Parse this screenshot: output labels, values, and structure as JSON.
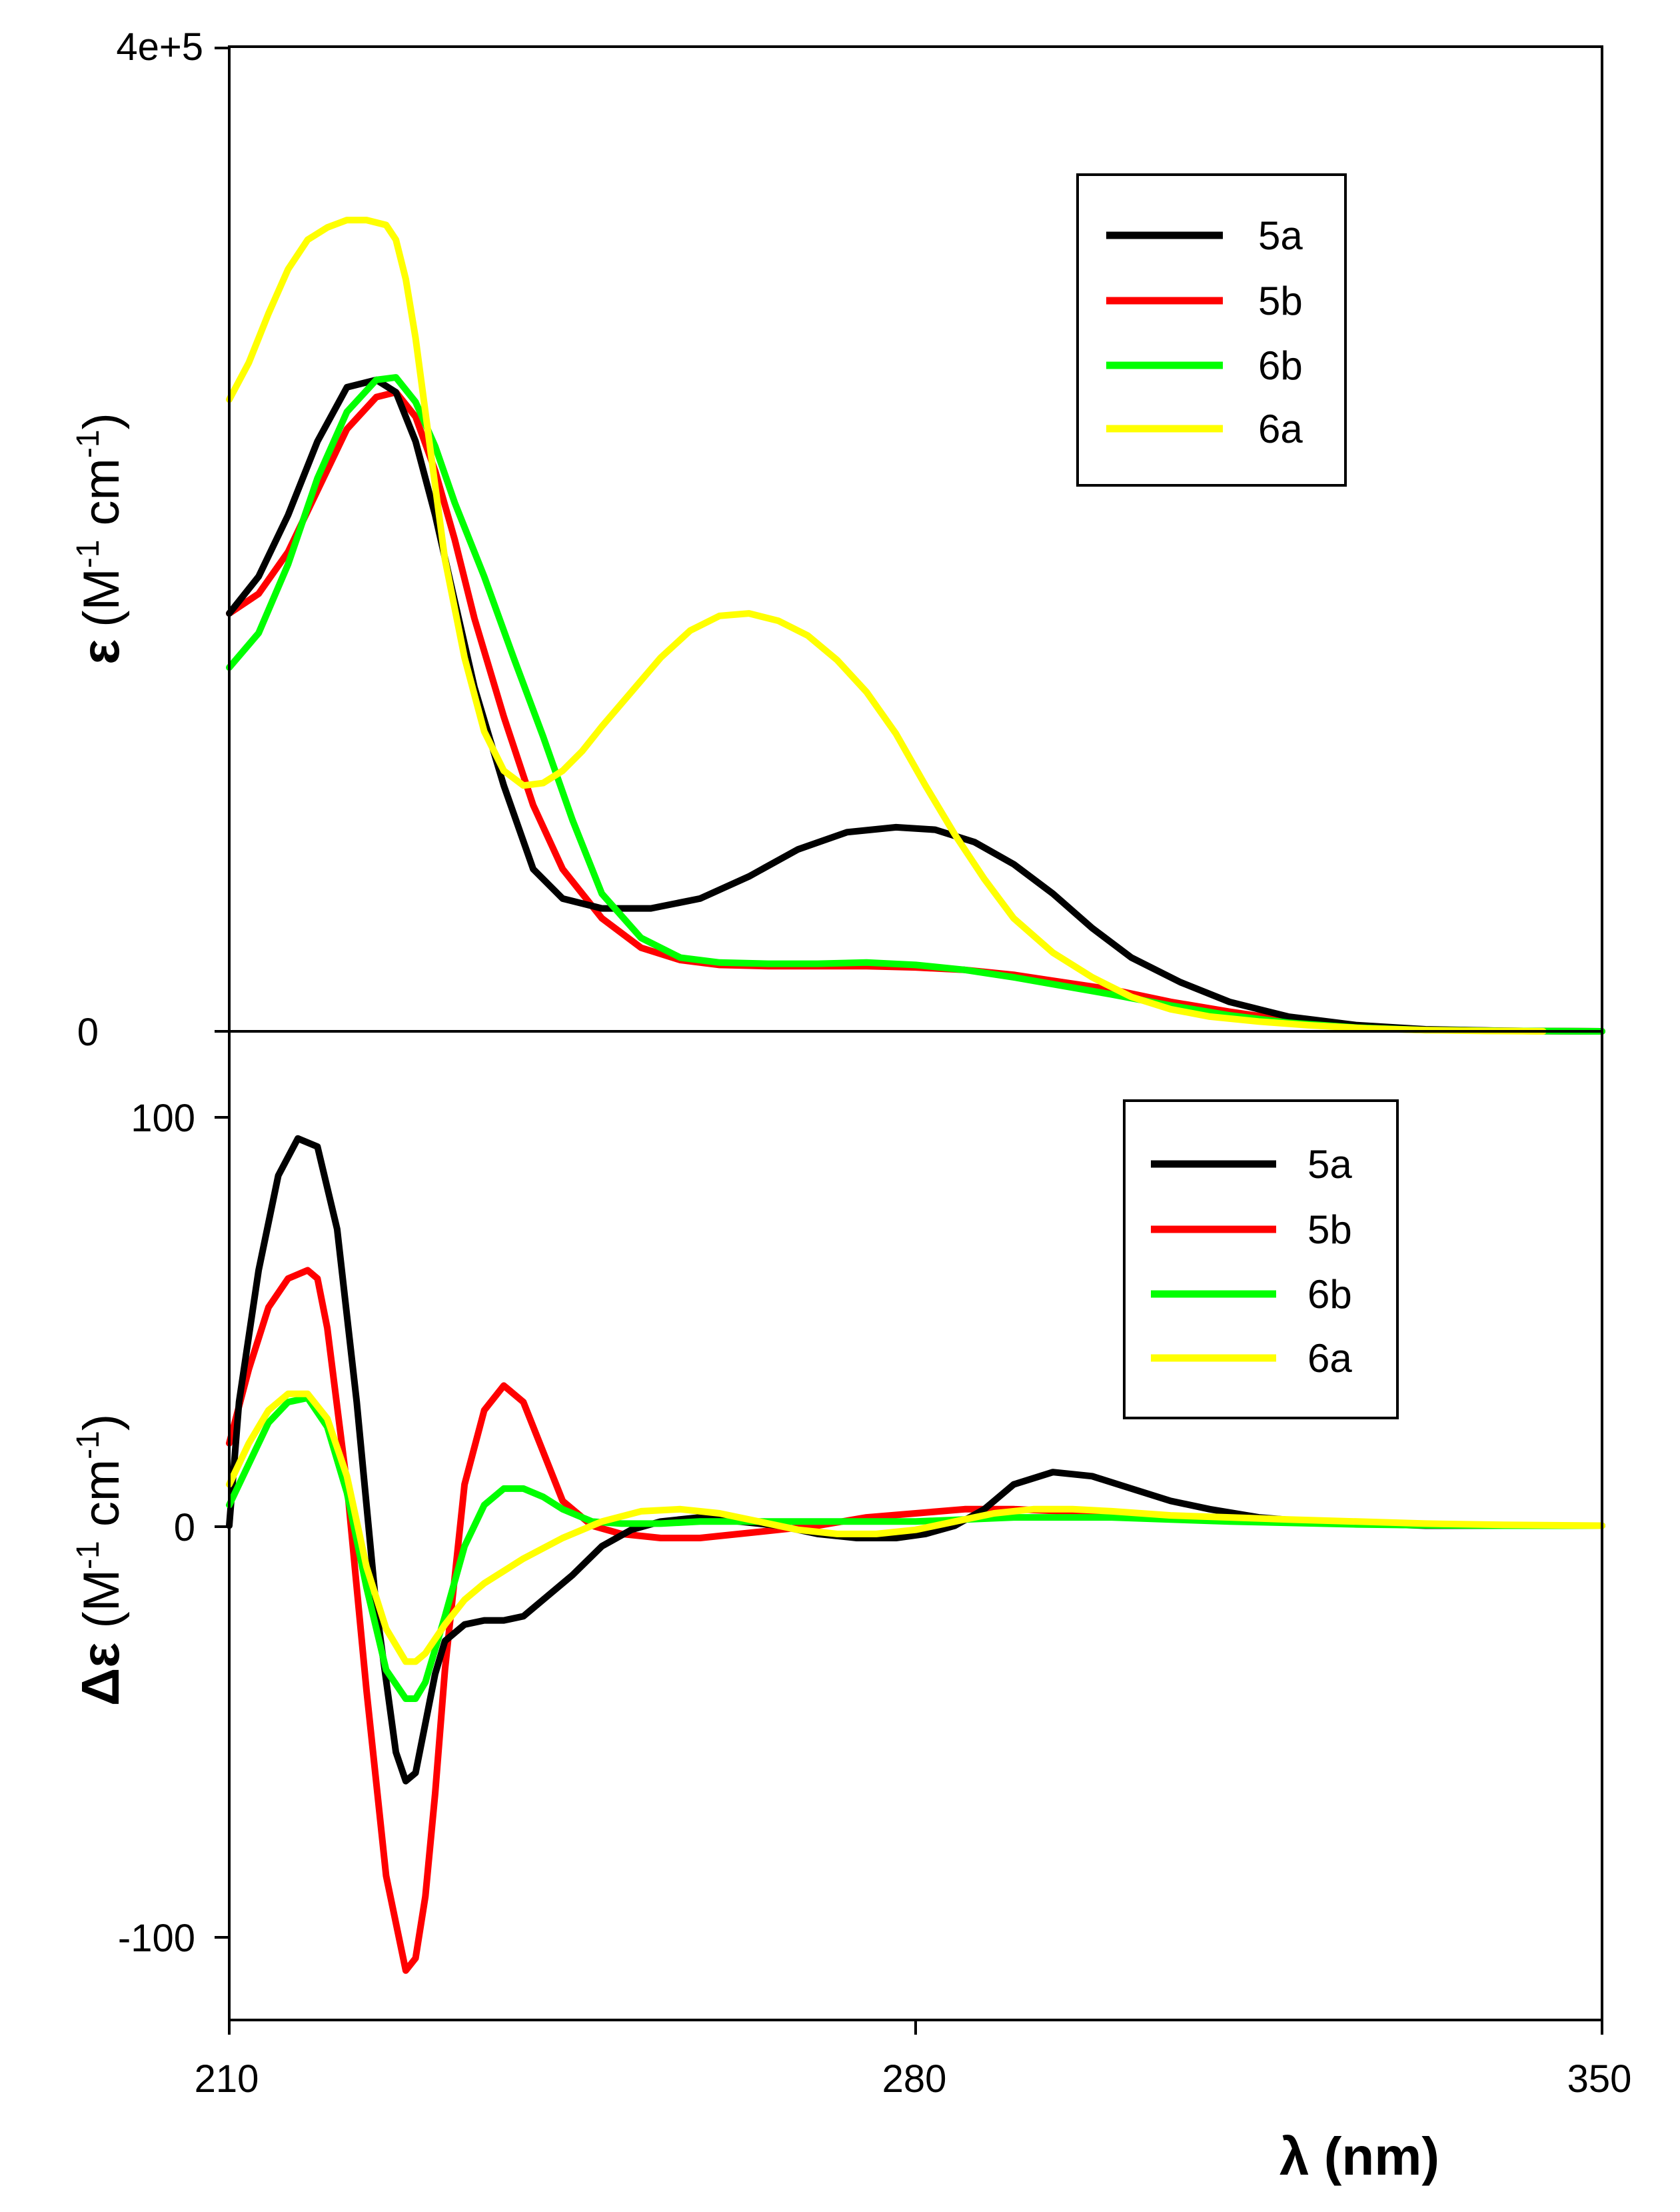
{
  "chart_data": [
    {
      "type": "line",
      "panel": "absorption",
      "ylabel_symbol": "ε",
      "ylabel_units_M": "(M",
      "ylabel_units_sup1": "-1",
      "ylabel_units_cm": " cm",
      "ylabel_units_sup2": "-1",
      "ylabel_units_close": ")",
      "xlim": [
        210,
        350
      ],
      "ylim": [
        0,
        400000
      ],
      "ytick_labels": [
        {
          "value": 400000,
          "label": "4e+5"
        },
        {
          "value": 0,
          "label": "0"
        }
      ],
      "legend": [
        "5a",
        "5b",
        "6b",
        "6a"
      ],
      "series": [
        {
          "name": "5a",
          "color": "#000000",
          "x": [
            210,
            213,
            216,
            219,
            222,
            225,
            227,
            229,
            231,
            233,
            235,
            238,
            241,
            244,
            248,
            253,
            258,
            263,
            268,
            273,
            278,
            282,
            286,
            290,
            294,
            298,
            302,
            307,
            312,
            318,
            325,
            332,
            340,
            350
          ],
          "y": [
            170000,
            185000,
            210000,
            240000,
            262000,
            265000,
            260000,
            240000,
            210000,
            175000,
            140000,
            100000,
            66000,
            54000,
            50000,
            50000,
            54000,
            63000,
            74000,
            81000,
            83000,
            82000,
            77000,
            68000,
            56000,
            42000,
            30000,
            20000,
            12000,
            6000,
            2500,
            800,
            200,
            0
          ]
        },
        {
          "name": "5b",
          "color": "#ff0000",
          "x": [
            210,
            213,
            216,
            219,
            222,
            225,
            227,
            229,
            231,
            233,
            235,
            238,
            241,
            244,
            248,
            252,
            256,
            260,
            265,
            270,
            275,
            280,
            285,
            290,
            295,
            300,
            306,
            312,
            318,
            325,
            332,
            340,
            350
          ],
          "y": [
            170000,
            178000,
            195000,
            220000,
            245000,
            258000,
            260000,
            250000,
            228000,
            200000,
            168000,
            128000,
            92000,
            66000,
            46000,
            34000,
            29000,
            27000,
            26500,
            26500,
            26500,
            26000,
            25000,
            23000,
            20000,
            17000,
            12000,
            8000,
            4500,
            2000,
            700,
            200,
            0
          ]
        },
        {
          "name": "6b",
          "color": "#00ff00",
          "x": [
            210,
            213,
            216,
            219,
            222,
            225,
            227,
            229,
            231,
            233,
            236,
            239,
            242,
            245,
            248,
            252,
            256,
            260,
            265,
            270,
            275,
            280,
            285,
            290,
            295,
            300,
            306,
            312,
            318,
            325,
            332,
            340,
            350
          ],
          "y": [
            148000,
            162000,
            190000,
            225000,
            252000,
            265000,
            266000,
            256000,
            238000,
            215000,
            185000,
            152000,
            120000,
            86000,
            56000,
            38000,
            30000,
            28000,
            27500,
            27500,
            28000,
            27000,
            25000,
            22000,
            18500,
            15000,
            10500,
            6500,
            3500,
            1500,
            500,
            150,
            0
          ]
        },
        {
          "name": "6a",
          "color": "#ffff00",
          "x": [
            210,
            212,
            214,
            216,
            218,
            220,
            222,
            224,
            226,
            227,
            228,
            229,
            230,
            231,
            232,
            234,
            236,
            238,
            240,
            242,
            244,
            246,
            248,
            251,
            254,
            257,
            260,
            263,
            266,
            269,
            272,
            275,
            278,
            281,
            284,
            287,
            290,
            294,
            298,
            302,
            306,
            310,
            315,
            320,
            326,
            332,
            338,
            344
          ],
          "y": [
            257000,
            272000,
            292000,
            310000,
            322000,
            327000,
            330000,
            330000,
            328000,
            322000,
            306000,
            282000,
            252000,
            222000,
            192000,
            152000,
            122000,
            106000,
            100000,
            101000,
            106000,
            114000,
            124000,
            138000,
            152000,
            163000,
            169000,
            170000,
            167000,
            161000,
            151000,
            138000,
            121000,
            100000,
            80000,
            62000,
            46000,
            32000,
            22000,
            14000,
            9000,
            6000,
            4000,
            2500,
            1200,
            500,
            150,
            0
          ]
        }
      ]
    },
    {
      "type": "line",
      "panel": "circular-dichroism",
      "ylabel_symbol": "Δε",
      "ylabel_units_M": " (M",
      "ylabel_units_sup1": "-1",
      "ylabel_units_cm": " cm",
      "ylabel_units_sup2": "-1",
      "ylabel_units_close": ")",
      "xlabel": "λ (nm)",
      "xlim": [
        210,
        350
      ],
      "ylim": [
        -120,
        120
      ],
      "xtick_labels": [
        "210",
        "280",
        "350"
      ],
      "xticks": [
        210,
        280,
        350
      ],
      "ytick_labels": [
        {
          "value": 100,
          "label": "100"
        },
        {
          "value": 0,
          "label": "0"
        },
        {
          "value": -100,
          "label": "-100"
        }
      ],
      "legend": [
        "5a",
        "5b",
        "6b",
        "6a"
      ],
      "series": [
        {
          "name": "5a",
          "color": "#000000",
          "x": [
            210,
            211,
            213,
            215,
            217,
            219,
            221,
            223,
            225,
            227,
            228,
            229,
            230,
            231,
            232,
            234,
            236,
            238,
            240,
            242,
            245,
            248,
            251,
            254,
            258,
            262,
            266,
            270,
            274,
            278,
            281,
            284,
            287,
            290,
            294,
            298,
            302,
            306,
            310,
            315,
            320,
            326,
            332,
            340,
            350
          ],
          "y": [
            0,
            30,
            62,
            85,
            94,
            92,
            72,
            30,
            -20,
            -55,
            -62,
            -60,
            -48,
            -36,
            -28,
            -24,
            -23,
            -23,
            -22,
            -18,
            -12,
            -5,
            -1,
            1,
            2,
            1,
            0,
            -2,
            -3,
            -3,
            -2,
            0,
            4,
            10,
            13,
            12,
            9,
            6,
            4,
            2,
            1,
            0.5,
            0,
            0,
            0
          ]
        },
        {
          "name": "5b",
          "color": "#ff0000",
          "x": [
            210,
            212,
            214,
            216,
            218,
            219,
            220,
            222,
            224,
            226,
            228,
            229,
            230,
            231,
            232,
            234,
            236,
            238,
            240,
            242,
            244,
            247,
            250,
            254,
            258,
            262,
            266,
            270,
            275,
            280,
            285,
            290,
            295,
            300,
            305,
            310,
            315,
            320,
            326,
            332,
            340,
            350
          ],
          "y": [
            20,
            38,
            53,
            60,
            62,
            60,
            48,
            10,
            -40,
            -85,
            -108,
            -105,
            -90,
            -65,
            -35,
            10,
            28,
            34,
            30,
            18,
            6,
            0,
            -2,
            -3,
            -3,
            -2,
            -1,
            0,
            2,
            3,
            4,
            4,
            3.5,
            3,
            2.5,
            2,
            1.5,
            1,
            0.5,
            0.3,
            0,
            0
          ]
        },
        {
          "name": "6b",
          "color": "#00ff00",
          "x": [
            210,
            212,
            214,
            216,
            218,
            220,
            222,
            224,
            226,
            228,
            229,
            230,
            232,
            234,
            236,
            238,
            240,
            242,
            244,
            247,
            250,
            254,
            258,
            262,
            266,
            270,
            275,
            280,
            285,
            290,
            295,
            300,
            306,
            312,
            318,
            325,
            332,
            340,
            350
          ],
          "y": [
            5,
            15,
            25,
            30,
            31,
            24,
            8,
            -15,
            -35,
            -42,
            -42,
            -38,
            -22,
            -5,
            5,
            9,
            9,
            7,
            4,
            1,
            0.5,
            0.5,
            1,
            1,
            1,
            1,
            1,
            1,
            1.5,
            2,
            2,
            2,
            1.5,
            1,
            0.7,
            0.3,
            0.1,
            0,
            0
          ]
        },
        {
          "name": "6a",
          "color": "#ffff00",
          "x": [
            210,
            212,
            214,
            216,
            218,
            220,
            222,
            224,
            226,
            228,
            229,
            230,
            232,
            234,
            236,
            240,
            244,
            248,
            252,
            256,
            260,
            264,
            268,
            272,
            276,
            280,
            284,
            288,
            292,
            296,
            300,
            306,
            312,
            318,
            325,
            332,
            340,
            350
          ],
          "y": [
            10,
            20,
            28,
            32,
            32,
            26,
            12,
            -10,
            -25,
            -33,
            -33,
            -31,
            -24,
            -18,
            -14,
            -8,
            -3,
            1,
            3.5,
            4,
            3,
            1,
            -1,
            -2,
            -2,
            -1,
            1,
            3,
            4,
            4,
            3.5,
            2.5,
            2,
            1.5,
            1,
            0.5,
            0.2,
            0
          ]
        }
      ]
    }
  ]
}
